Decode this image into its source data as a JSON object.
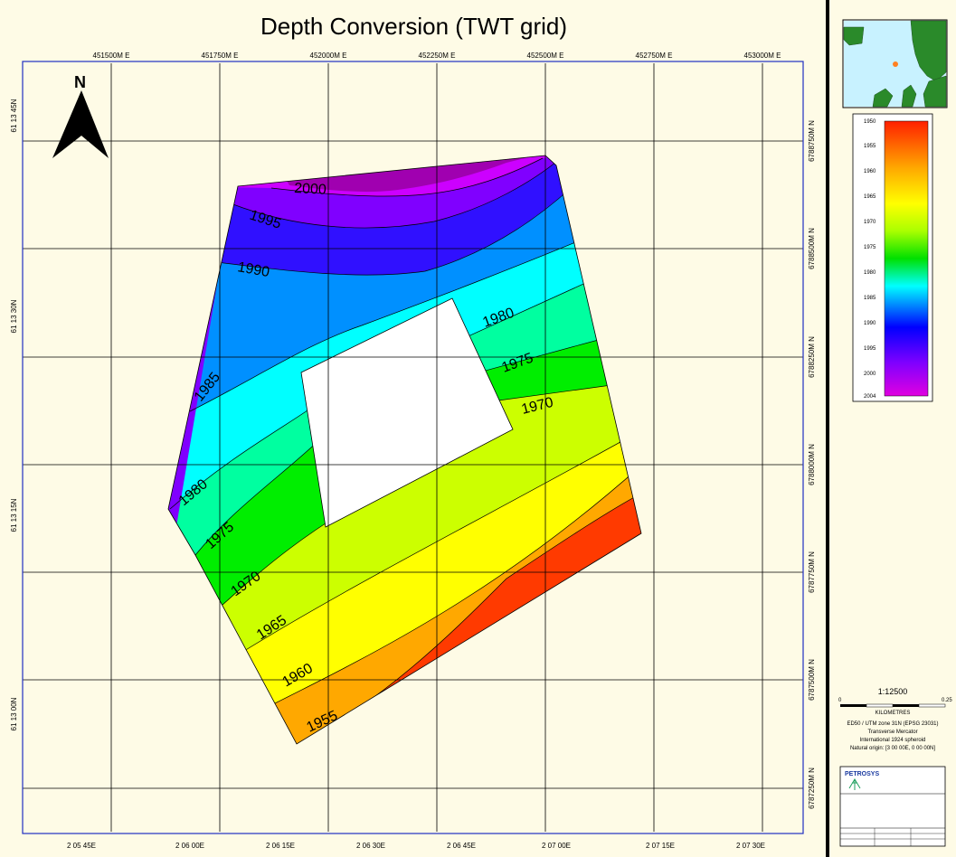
{
  "map": {
    "title": "Depth Conversion (TWT grid)",
    "north_label": "N",
    "x_ticks_top": [
      "451500M E",
      "451750M E",
      "452000M E",
      "452250M E",
      "452500M E",
      "452750M E",
      "453000M E"
    ],
    "x_ticks_bottom": [
      "2 05 45E",
      "2 06 00E",
      "2 06 15E",
      "2 06 30E",
      "2 06 45E",
      "2 07 00E",
      "2 07 15E",
      "2 07 30E"
    ],
    "y_ticks_left": [
      "61 13 45N",
      "61 13 30N",
      "61 13 15N",
      "61 13 00N"
    ],
    "y_ticks_right": [
      "6788750M N",
      "6788500M N",
      "6788250M N",
      "6788000M N",
      "6787750M N",
      "6787500M N",
      "6787250M N"
    ],
    "contour_labels": [
      "2000",
      "1995",
      "1990",
      "1985",
      "1980",
      "1980",
      "1975",
      "1975",
      "1970",
      "1970",
      "1965",
      "1960",
      "1955"
    ]
  },
  "colorbar": {
    "ticks": [
      "1950",
      "1955",
      "1960",
      "1965",
      "1970",
      "1975",
      "1980",
      "1985",
      "1990",
      "1995",
      "2000",
      "2004"
    ],
    "colors": [
      "#ff2000",
      "#ff9a00",
      "#ffff00",
      "#ccff00",
      "#00ee00",
      "#00ffa0",
      "#00ffff",
      "#0090ff",
      "#3010ff",
      "#8000ff",
      "#cc00ff"
    ]
  },
  "scale": {
    "ratio": "1:12500",
    "left_value": "0",
    "right_value": "0.25",
    "unit": "KILOMETRES",
    "projection_lines": [
      "ED50 / UTM zone 31N (EPSG 23031)",
      "Transverse Mercator",
      "International 1924 spheroid",
      "Natural origin: [3 00 00E, 0 00 00N]"
    ]
  },
  "logo": {
    "text": "PETROSYS"
  }
}
